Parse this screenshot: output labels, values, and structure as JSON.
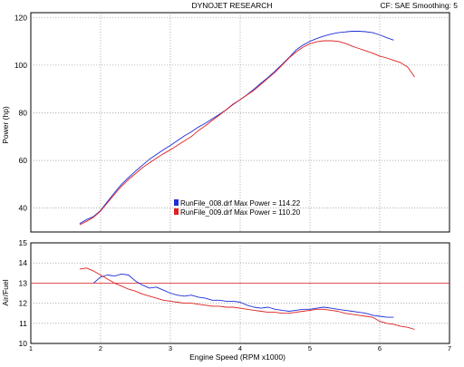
{
  "header": {
    "title": "DYNOJET RESEARCH",
    "cf_label": "CF: SAE  Smoothing: 5"
  },
  "chart_data": [
    {
      "type": "line",
      "ylabel": "Power (hp)",
      "ylim": [
        30,
        122
      ],
      "xlim": [
        1,
        7
      ],
      "y_ticks": [
        40,
        60,
        80,
        100,
        120
      ],
      "grid": true,
      "legend_position": "lower-center",
      "series": [
        {
          "name": "RunFile_008.drf Max Power = 114.22",
          "color": "#1e2ed8",
          "x": [
            1.7,
            1.8,
            1.9,
            2.0,
            2.1,
            2.2,
            2.3,
            2.4,
            2.5,
            2.6,
            2.7,
            2.8,
            2.9,
            3.0,
            3.1,
            3.2,
            3.3,
            3.4,
            3.5,
            3.6,
            3.7,
            3.8,
            3.9,
            4.0,
            4.1,
            4.2,
            4.3,
            4.4,
            4.5,
            4.6,
            4.7,
            4.8,
            4.9,
            5.0,
            5.1,
            5.2,
            5.3,
            5.4,
            5.5,
            5.6,
            5.7,
            5.8,
            5.9,
            6.0,
            6.1,
            6.2
          ],
          "y": [
            33.5,
            35.2,
            36.5,
            39.0,
            42.8,
            46.5,
            50.0,
            52.8,
            55.5,
            58.0,
            60.5,
            62.5,
            64.5,
            66.3,
            68.3,
            70.3,
            72.0,
            74.0,
            75.6,
            77.5,
            79.3,
            81.3,
            83.5,
            85.5,
            87.6,
            90.0,
            92.5,
            94.8,
            97.5,
            100.3,
            103.2,
            106.3,
            108.4,
            110.0,
            111.2,
            112.2,
            113.0,
            113.6,
            113.9,
            114.2,
            114.2,
            114.0,
            113.6,
            112.7,
            111.5,
            110.5
          ]
        },
        {
          "name": "RunFile_009.drf Max Power = 110.20",
          "color": "#e02020",
          "x": [
            1.7,
            1.8,
            1.9,
            2.0,
            2.1,
            2.2,
            2.3,
            2.4,
            2.5,
            2.6,
            2.7,
            2.8,
            2.9,
            3.0,
            3.1,
            3.2,
            3.3,
            3.4,
            3.5,
            3.6,
            3.7,
            3.8,
            3.9,
            4.0,
            4.1,
            4.2,
            4.3,
            4.4,
            4.5,
            4.6,
            4.7,
            4.8,
            4.9,
            5.0,
            5.1,
            5.2,
            5.3,
            5.4,
            5.5,
            5.6,
            5.7,
            5.8,
            5.9,
            6.0,
            6.1,
            6.2,
            6.3,
            6.4,
            6.5
          ],
          "y": [
            33.0,
            34.5,
            36.2,
            38.8,
            42.3,
            45.8,
            49.2,
            52.0,
            54.5,
            57.0,
            59.0,
            61.0,
            62.8,
            64.5,
            66.3,
            68.2,
            70.0,
            72.5,
            74.5,
            76.8,
            79.0,
            81.3,
            83.7,
            85.5,
            87.5,
            89.5,
            92.0,
            94.5,
            97.0,
            100.0,
            103.0,
            105.5,
            107.5,
            109.0,
            109.8,
            110.2,
            110.2,
            110.0,
            109.2,
            108.0,
            107.0,
            106.0,
            105.0,
            103.8,
            103.0,
            102.0,
            101.0,
            99.2,
            95.0
          ]
        }
      ]
    },
    {
      "type": "line",
      "ylabel": "Air/Fuel",
      "xlabel": "Engine Speed (RPM x1000)",
      "ylim": [
        10,
        15
      ],
      "xlim": [
        1,
        7
      ],
      "y_ticks": [
        10,
        11,
        12,
        13,
        14,
        15
      ],
      "x_ticks": [
        1,
        2,
        3,
        4,
        5,
        6,
        7
      ],
      "grid": true,
      "reference_line": {
        "y": 13.0,
        "color": "#e02020"
      },
      "series": [
        {
          "name": "RunFile_008.drf",
          "color": "#1e2ed8",
          "x": [
            1.9,
            2.0,
            2.1,
            2.2,
            2.3,
            2.4,
            2.5,
            2.6,
            2.7,
            2.8,
            2.9,
            3.0,
            3.1,
            3.2,
            3.3,
            3.4,
            3.5,
            3.6,
            3.7,
            3.8,
            3.9,
            4.0,
            4.1,
            4.2,
            4.3,
            4.4,
            4.5,
            4.6,
            4.7,
            4.8,
            4.9,
            5.0,
            5.1,
            5.2,
            5.3,
            5.4,
            5.5,
            5.6,
            5.7,
            5.8,
            5.9,
            6.0,
            6.1,
            6.2
          ],
          "y": [
            13.0,
            13.3,
            13.4,
            13.35,
            13.45,
            13.4,
            13.1,
            12.9,
            12.75,
            12.8,
            12.65,
            12.5,
            12.4,
            12.35,
            12.4,
            12.3,
            12.25,
            12.15,
            12.15,
            12.1,
            12.1,
            12.05,
            11.9,
            11.8,
            11.75,
            11.8,
            11.7,
            11.65,
            11.6,
            11.65,
            11.7,
            11.7,
            11.75,
            11.8,
            11.75,
            11.7,
            11.65,
            11.6,
            11.55,
            11.5,
            11.4,
            11.35,
            11.3,
            11.3
          ]
        },
        {
          "name": "RunFile_009.drf",
          "color": "#e02020",
          "x": [
            1.7,
            1.8,
            1.9,
            2.0,
            2.1,
            2.2,
            2.3,
            2.4,
            2.5,
            2.6,
            2.7,
            2.8,
            2.9,
            3.0,
            3.1,
            3.2,
            3.3,
            3.4,
            3.5,
            3.6,
            3.7,
            3.8,
            3.9,
            4.0,
            4.1,
            4.2,
            4.3,
            4.4,
            4.5,
            4.6,
            4.7,
            4.8,
            4.9,
            5.0,
            5.1,
            5.2,
            5.3,
            5.4,
            5.5,
            5.6,
            5.7,
            5.8,
            5.9,
            6.0,
            6.1,
            6.2,
            6.3,
            6.4,
            6.5
          ],
          "y": [
            13.7,
            13.75,
            13.6,
            13.4,
            13.2,
            13.0,
            12.85,
            12.7,
            12.6,
            12.45,
            12.35,
            12.25,
            12.15,
            12.1,
            12.05,
            12.0,
            12.0,
            11.95,
            11.9,
            11.85,
            11.85,
            11.8,
            11.8,
            11.75,
            11.7,
            11.65,
            11.6,
            11.55,
            11.55,
            11.5,
            11.5,
            11.55,
            11.6,
            11.65,
            11.7,
            11.7,
            11.65,
            11.6,
            11.5,
            11.45,
            11.4,
            11.35,
            11.3,
            11.1,
            11.0,
            10.95,
            10.85,
            10.8,
            10.7
          ]
        }
      ]
    }
  ]
}
